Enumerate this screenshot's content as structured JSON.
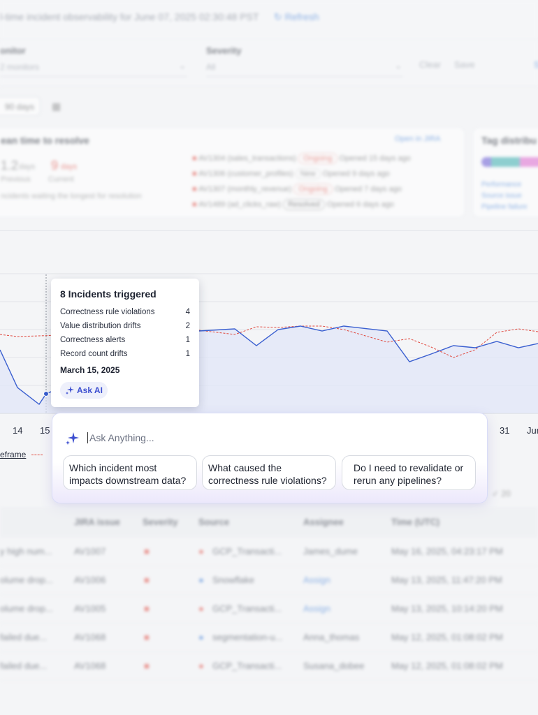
{
  "header": {
    "subtitle": "l-time incident observability for June 07, 2025 02:30:48 PST",
    "refresh_label": "Refresh"
  },
  "filters": {
    "monitor_label": "onitor",
    "monitor_value": "2 monitors",
    "severity_label": "Severity",
    "severity_value": "All",
    "clear_label": "Clear",
    "save_label": "Save",
    "more_label": "S"
  },
  "period": {
    "chip_label": "90 days"
  },
  "mttr_card": {
    "title": "ean time to resolve",
    "prev_value": "1.2",
    "prev_unit": "days",
    "prev_label": "Previous",
    "curr_value": "9",
    "curr_unit": "days",
    "curr_label": "Current",
    "note": "ncidents waiting the longest for resolution",
    "open_link": "Open in JIRA",
    "incidents": [
      {
        "id": "AV1304",
        "name": "(sales_transactions)",
        "status": "Ongoing",
        "opened": "Opened 15 days ago"
      },
      {
        "id": "AV1306",
        "name": "(customer_profiles)",
        "status": "New",
        "opened": "Opened 9 days ago"
      },
      {
        "id": "AV1307",
        "name": "(monthly_revenue)",
        "status": "Ongoing",
        "opened": "Opened 7 days ago"
      },
      {
        "id": "AV1489",
        "name": "(ad_clicks_raw)",
        "status": "Resolved",
        "opened": "Opened 6 days ago"
      }
    ]
  },
  "tags_card": {
    "title": "Tag distribu",
    "items": [
      "Performance",
      "Source issue",
      "Pipeline failure"
    ]
  },
  "chart": {
    "x_ticks": [
      "14",
      "15",
      "31",
      "Jun"
    ],
    "legend_label": "eframe",
    "series_colors": {
      "incidents": "#3a5fd0",
      "baseline": "#e0483e"
    }
  },
  "tooltip": {
    "title": "8 Incidents triggered",
    "rows": [
      {
        "label": "Correctness rule violations",
        "value": "4"
      },
      {
        "label": "Value distribution drifts",
        "value": "2"
      },
      {
        "label": "Correctness alerts",
        "value": "1"
      },
      {
        "label": "Record count drifts",
        "value": "1"
      }
    ],
    "date": "March 15, 2025",
    "ask_ai_label": "Ask AI"
  },
  "ask_panel": {
    "placeholder": "Ask Anything...",
    "suggestions": [
      "Which incident most impacts downstream data?",
      "What caused the correctness rule violations?",
      "Do I need to revalidate or rerun any pipelines?"
    ]
  },
  "table": {
    "count_label": "20",
    "headers": [
      "JIRA issue",
      "Severity",
      "Source",
      "Assignee",
      "Time (UTC)"
    ],
    "rows": [
      {
        "desc": "y high num...",
        "jira": "AV1007",
        "source": "GCP_Transacti...",
        "assignee": "James_dume",
        "time": "May 16, 2025, 04:23:17 PM"
      },
      {
        "desc": "olume drop...",
        "jira": "AV1006",
        "source": "Snowflake",
        "assignee": "Assign",
        "time": "May 13, 2025, 11:47:20 PM"
      },
      {
        "desc": "olume drop...",
        "jira": "AV1005",
        "source": "GCP_Transacti...",
        "assignee": "Assign",
        "time": "May 13, 2025, 10:14:20 PM"
      },
      {
        "desc": "failed due...",
        "jira": "AV1068",
        "source": "segmentation-u...",
        "assignee": "Anna_thomas",
        "time": "May 12, 2025, 01:08:02 PM"
      },
      {
        "desc": "failed due...",
        "jira": "AV1068",
        "source": "GCP_Transacti...",
        "assignee": "Susana_dobee",
        "time": "May 12, 2025, 01:08:02 PM"
      }
    ]
  }
}
